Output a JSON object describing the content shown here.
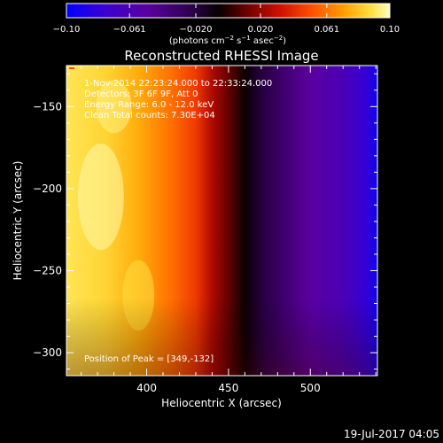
{
  "colorbar": {
    "tick_labels": [
      "−0.10",
      "−0.061",
      "−0.020",
      "0.020",
      "0.061",
      "0.10"
    ],
    "tick_values": [
      -0.1,
      -0.061,
      -0.02,
      0.02,
      0.061,
      0.1
    ],
    "range": [
      -0.1,
      0.1
    ],
    "unit_main": "(photons cm",
    "unit_sup1": "−2",
    "unit_mid1": " s",
    "unit_sup2": "−1",
    "unit_mid2": " asec",
    "unit_sup3": "−2",
    "unit_end": ")"
  },
  "chart_data": {
    "type": "heatmap",
    "title": "Reconstructed RHESSI Image",
    "xlabel": "Heliocentric X (arcsec)",
    "ylabel": "Heliocentric Y (arcsec)",
    "xlim": [
      351,
      541
    ],
    "ylim": [
      -314,
      -125
    ],
    "x_ticks": [
      400,
      450,
      500
    ],
    "x_tick_labels": [
      "400",
      "450",
      "500"
    ],
    "y_ticks": [
      -150,
      -200,
      -250,
      -300
    ],
    "y_tick_labels": [
      "−150",
      "−200",
      "−250",
      "−300"
    ],
    "colormap": "rhessi-flame",
    "colors": [
      "#0000ff",
      "#4000c0",
      "#5000a0",
      "#3a0060",
      "#000000",
      "#600000",
      "#c00000",
      "#ff3000",
      "#ff9000",
      "#ffe000",
      "#ffff80"
    ],
    "annotations": [
      "1-Nov-2014 22:23:24.000 to 22:33:24.000",
      "Detectors: 3F 6F 9F, Att 0",
      "Energy Range: 6.0 - 12.0 keV",
      "Clean   Total counts: 7.30E+04"
    ],
    "peak_label": "Position of Peak = [349,-132]",
    "peak": [
      349,
      -132
    ],
    "date_stamp": "19-Jul-2017 04:05",
    "gradient_stops": [
      {
        "x": 351,
        "value": 0.09
      },
      {
        "x": 375,
        "value": 0.085
      },
      {
        "x": 395,
        "value": 0.075
      },
      {
        "x": 415,
        "value": 0.06
      },
      {
        "x": 430,
        "value": 0.045
      },
      {
        "x": 440,
        "value": 0.025
      },
      {
        "x": 450,
        "value": 0.01
      },
      {
        "x": 460,
        "value": -0.005
      },
      {
        "x": 470,
        "value": -0.02
      },
      {
        "x": 485,
        "value": -0.035
      },
      {
        "x": 500,
        "value": -0.05
      },
      {
        "x": 520,
        "value": -0.062
      },
      {
        "x": 535,
        "value": -0.08
      },
      {
        "x": 541,
        "value": -0.095
      }
    ]
  }
}
